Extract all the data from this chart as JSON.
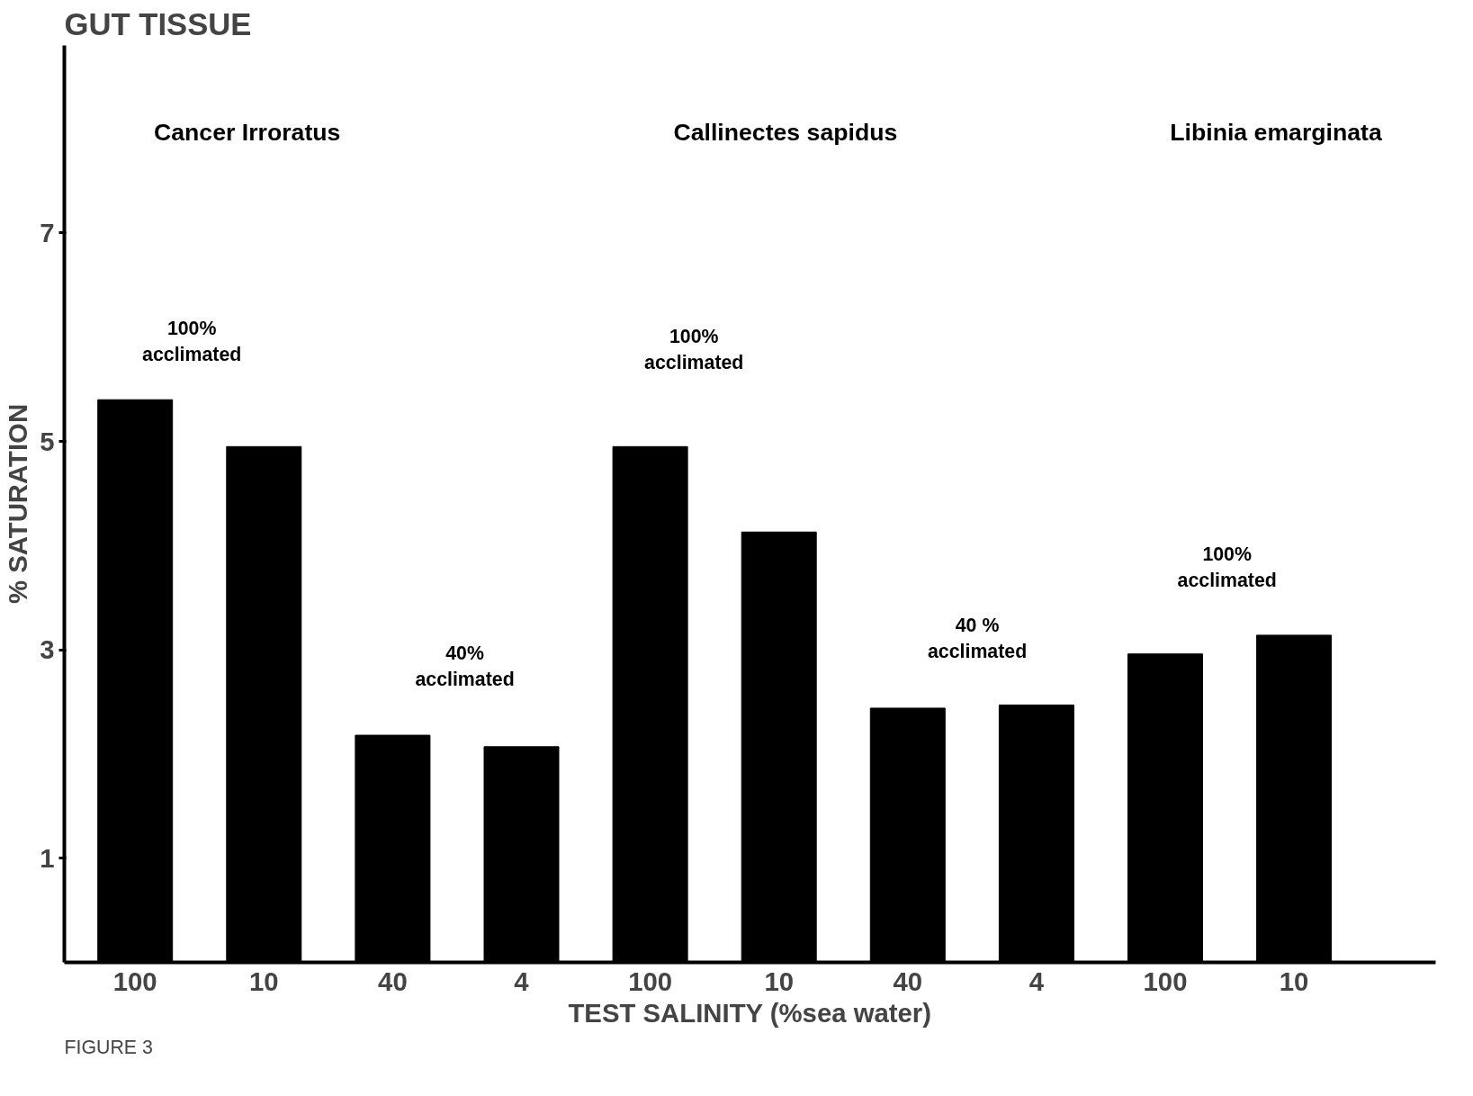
{
  "chart_data": {
    "type": "bar",
    "title": "GUT TISSUE",
    "xlabel": "TEST SALINITY (%sea water)",
    "ylabel": "% SATURATION",
    "categories": [
      "100",
      "10",
      "40",
      "4",
      "100",
      "10",
      "40",
      "4",
      "100",
      "10"
    ],
    "values": [
      5.4,
      4.95,
      2.18,
      2.07,
      4.95,
      4.13,
      2.44,
      2.47,
      2.96,
      3.14
    ],
    "color": "#000000",
    "ylim": [
      0,
      8.8
    ],
    "yticks": [
      1,
      3,
      5,
      7
    ],
    "grid": false,
    "annotations": [
      "Cancer Irroratus",
      "Callinectes sapidus",
      "Libinia emarginata",
      "100%\nacclimated",
      "40%\nacclimated",
      "100%\nacclimated",
      "40 %\nacclimated",
      "100%\nacclimated",
      "FIGURE 3"
    ]
  }
}
